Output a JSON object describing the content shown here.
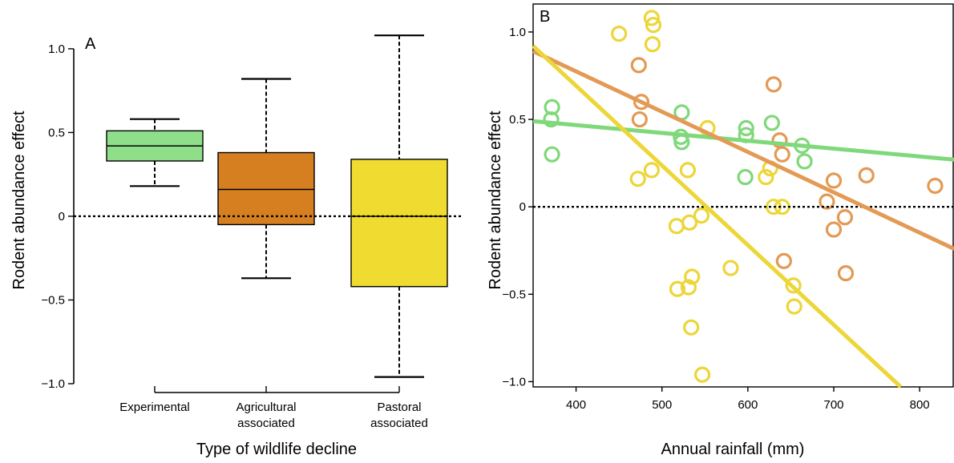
{
  "colors": {
    "experimental": "#8fdf8a",
    "agricultural": "#d57f20",
    "pastoral": "#f0dc30",
    "scatter_experimental": "#7fd87a",
    "scatter_agricultural": "#e39a55",
    "scatter_pastoral": "#ecd638"
  },
  "chart_data": [
    {
      "type": "box",
      "panel_label": "A",
      "xlabel": "Type of wildlife decline",
      "ylabel": "Rodent abundance effect",
      "ylim": [
        -1.0,
        1.1
      ],
      "yticks": [
        1.0,
        0.5,
        0,
        -0.5,
        -1.0
      ],
      "ytick_labels": [
        "1.0",
        "0.5",
        "0",
        "−0.5",
        "−1.0"
      ],
      "reference_line": 0,
      "categories": [
        {
          "label_lines": [
            "Experimental"
          ],
          "color": "#8fdf8a",
          "whisker_low": 0.18,
          "q1": 0.33,
          "median": 0.42,
          "q3": 0.51,
          "whisker_high": 0.58
        },
        {
          "label_lines": [
            "Agricultural",
            "associated"
          ],
          "color": "#d57f20",
          "whisker_low": -0.37,
          "q1": -0.05,
          "median": 0.16,
          "q3": 0.38,
          "whisker_high": 0.82
        },
        {
          "label_lines": [
            "Pastoral",
            "associated"
          ],
          "color": "#f0dc30",
          "whisker_low": -0.96,
          "q1": -0.42,
          "median": 0.0,
          "q3": 0.34,
          "whisker_high": 1.08
        }
      ]
    },
    {
      "type": "scatter",
      "panel_label": "B",
      "xlabel": "Annual rainfall (mm)",
      "ylabel": "Rodent abundance effect",
      "xlim": [
        350,
        840
      ],
      "ylim": [
        -1.03,
        1.16
      ],
      "xticks": [
        400,
        500,
        600,
        700,
        800
      ],
      "xtick_labels": [
        "400",
        "500",
        "600",
        "700",
        "800"
      ],
      "yticks": [
        1.0,
        0.5,
        0,
        -0.5,
        -1.0
      ],
      "ytick_labels": [
        "1.0",
        "0.5",
        "0",
        "−0.5",
        "−1.0"
      ],
      "reference_line": 0,
      "series": [
        {
          "color": "#7fd87a",
          "points": [
            [
              372,
              0.57
            ],
            [
              371,
              0.5
            ],
            [
              372,
              0.3
            ],
            [
              523,
              0.54
            ],
            [
              522,
              0.4
            ],
            [
              523,
              0.37
            ],
            [
              598,
              0.45
            ],
            [
              598,
              0.41
            ],
            [
              597,
              0.17
            ],
            [
              628,
              0.48
            ],
            [
              663,
              0.35
            ],
            [
              666,
              0.26
            ]
          ],
          "fit": [
            [
              350,
              0.49
            ],
            [
              840,
              0.27
            ]
          ]
        },
        {
          "color": "#e39a55",
          "points": [
            [
              473,
              0.81
            ],
            [
              476,
              0.6
            ],
            [
              474,
              0.5
            ],
            [
              630,
              0.7
            ],
            [
              637,
              0.38
            ],
            [
              640,
              0.3
            ],
            [
              642,
              -0.31
            ],
            [
              692,
              0.03
            ],
            [
              700,
              0.15
            ],
            [
              700,
              -0.13
            ],
            [
              713,
              -0.06
            ],
            [
              714,
              -0.38
            ],
            [
              738,
              0.18
            ],
            [
              818,
              0.12
            ]
          ],
          "fit": [
            [
              350,
              0.89
            ],
            [
              840,
              -0.24
            ]
          ]
        },
        {
          "color": "#ecd638",
          "points": [
            [
              450,
              0.99
            ],
            [
              488,
              1.08
            ],
            [
              490,
              1.04
            ],
            [
              489,
              0.93
            ],
            [
              488,
              0.21
            ],
            [
              472,
              0.16
            ],
            [
              553,
              0.45
            ],
            [
              530,
              0.21
            ],
            [
              517,
              -0.11
            ],
            [
              532,
              -0.09
            ],
            [
              546,
              -0.05
            ],
            [
              518,
              -0.47
            ],
            [
              531,
              -0.46
            ],
            [
              535,
              -0.4
            ],
            [
              534,
              -0.69
            ],
            [
              547,
              -0.96
            ],
            [
              580,
              -0.35
            ],
            [
              621,
              0.17
            ],
            [
              626,
              0.22
            ],
            [
              630,
              0.0
            ],
            [
              640,
              0.0
            ],
            [
              653,
              -0.45
            ],
            [
              654,
              -0.57
            ]
          ],
          "fit": [
            [
              350,
              0.92
            ],
            [
              778,
              -1.03
            ]
          ]
        }
      ]
    }
  ]
}
